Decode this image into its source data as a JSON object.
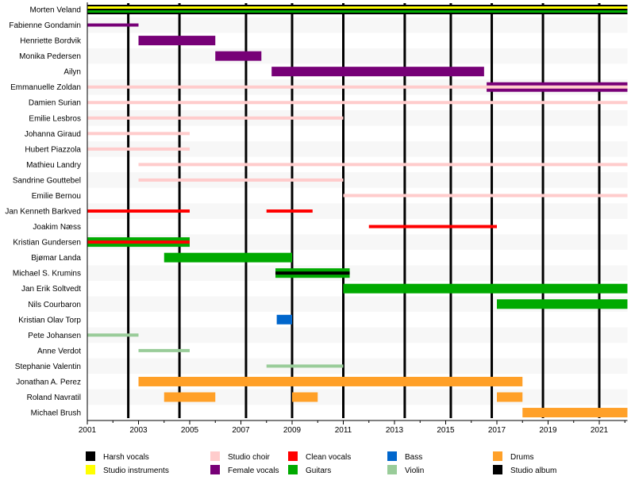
{
  "chart_data": {
    "type": "timeline",
    "xlim": [
      2001,
      2022.1
    ],
    "x_ticks": [
      "2001",
      "2003",
      "2005",
      "2007",
      "2009",
      "2011",
      "2013",
      "2015",
      "2017",
      "2019",
      "2021"
    ],
    "roles": {
      "harsh": {
        "label": "Harsh vocals",
        "color": "#000000"
      },
      "studio": {
        "label": "Studio instruments",
        "color": "#ffff00"
      },
      "choir": {
        "label": "Studio choir",
        "color": "#ffcccc"
      },
      "female": {
        "label": "Female vocals",
        "color": "#770077"
      },
      "clean": {
        "label": "Clean vocals",
        "color": "#ff0000"
      },
      "guitars": {
        "label": "Guitars",
        "color": "#00aa00"
      },
      "bass": {
        "label": "Bass",
        "color": "#0066cc"
      },
      "violin": {
        "label": "Violin",
        "color": "#99cc99"
      },
      "drums": {
        "label": "Drums",
        "color": "#ffa028"
      },
      "album": {
        "label": "Studio album",
        "color": "#000000"
      }
    },
    "legend_order": [
      "harsh",
      "studio",
      "choir",
      "female",
      "clean",
      "guitars",
      "bass",
      "violin",
      "drums",
      "album"
    ],
    "legend_placement": "bottom",
    "albums": [
      2002.6,
      2004.6,
      2007.2,
      2009.0,
      2011.0,
      2013.4,
      2015.2,
      2016.8,
      2018.8,
      2021.0
    ],
    "members": [
      {
        "name": "Morten Veland",
        "bars": [
          {
            "role": "harsh",
            "from": 2001,
            "to": 2022.1,
            "main": true
          },
          {
            "role": "studio",
            "from": 2001,
            "to": 2022.1,
            "stripe": "upper"
          },
          {
            "role": "guitars",
            "from": 2001,
            "to": 2022.1,
            "stripe": "lower"
          }
        ]
      },
      {
        "name": "Fabienne Gondamin",
        "bars": [
          {
            "role": "female",
            "from": 2001,
            "to": 2003,
            "thin": true
          }
        ]
      },
      {
        "name": "Henriette Bordvik",
        "bars": [
          {
            "role": "female",
            "from": 2003,
            "to": 2006,
            "main": true
          }
        ]
      },
      {
        "name": "Monika Pedersen",
        "bars": [
          {
            "role": "female",
            "from": 2006,
            "to": 2007.8,
            "main": true
          }
        ]
      },
      {
        "name": "Ailyn",
        "bars": [
          {
            "role": "female",
            "from": 2008.2,
            "to": 2016.5,
            "main": true
          }
        ]
      },
      {
        "name": "Emmanuelle Zoldan",
        "bars": [
          {
            "role": "female",
            "from": 2016.6,
            "to": 2022.1,
            "main": true
          },
          {
            "role": "choir",
            "from": 2001,
            "to": 2022.1,
            "thin": true
          }
        ]
      },
      {
        "name": "Damien Surian",
        "bars": [
          {
            "role": "choir",
            "from": 2001,
            "to": 2022.1,
            "thin": true
          }
        ]
      },
      {
        "name": "Emilie Lesbros",
        "bars": [
          {
            "role": "choir",
            "from": 2001,
            "to": 2011,
            "thin": true
          }
        ]
      },
      {
        "name": "Johanna Giraud",
        "bars": [
          {
            "role": "choir",
            "from": 2001,
            "to": 2005,
            "thin": true
          }
        ]
      },
      {
        "name": "Hubert Piazzola",
        "bars": [
          {
            "role": "choir",
            "from": 2001,
            "to": 2005,
            "thin": true
          }
        ]
      },
      {
        "name": "Mathieu Landry",
        "bars": [
          {
            "role": "choir",
            "from": 2003,
            "to": 2022.1,
            "thin": true
          }
        ]
      },
      {
        "name": "Sandrine Gouttebel",
        "bars": [
          {
            "role": "choir",
            "from": 2003,
            "to": 2011,
            "thin": true
          }
        ]
      },
      {
        "name": "Emilie Bernou",
        "bars": [
          {
            "role": "choir",
            "from": 2011,
            "to": 2022.1,
            "thin": true
          }
        ]
      },
      {
        "name": "Jan Kenneth Barkved",
        "bars": [
          {
            "role": "clean",
            "from": 2001,
            "to": 2005,
            "thin": true
          },
          {
            "role": "clean",
            "from": 2008,
            "to": 2009.8,
            "thin": true
          }
        ]
      },
      {
        "name": "Joakim Næss",
        "bars": [
          {
            "role": "clean",
            "from": 2012,
            "to": 2017,
            "thin": true
          }
        ]
      },
      {
        "name": "Kristian Gundersen",
        "bars": [
          {
            "role": "guitars",
            "from": 2001,
            "to": 2005,
            "main": true
          },
          {
            "role": "clean",
            "from": 2001,
            "to": 2005,
            "thin": true
          }
        ]
      },
      {
        "name": "Bjømar Landa",
        "bars": [
          {
            "role": "guitars",
            "from": 2004,
            "to": 2009,
            "main": true
          }
        ]
      },
      {
        "name": "Michael S. Krumins",
        "bars": [
          {
            "role": "guitars",
            "from": 2008.35,
            "to": 2011.25,
            "main": true
          },
          {
            "role": "harsh",
            "from": 2008.35,
            "to": 2011.25,
            "thin": true
          }
        ]
      },
      {
        "name": "Jan Erik Soltvedt",
        "bars": [
          {
            "role": "guitars",
            "from": 2011,
            "to": 2022.1,
            "main": true
          }
        ]
      },
      {
        "name": "Nils Courbaron",
        "bars": [
          {
            "role": "guitars",
            "from": 2017,
            "to": 2022.1,
            "main": true
          }
        ]
      },
      {
        "name": "Kristian Olav Torp",
        "bars": [
          {
            "role": "bass",
            "from": 2008.4,
            "to": 2009,
            "main": true
          }
        ]
      },
      {
        "name": "Pete Johansen",
        "bars": [
          {
            "role": "violin",
            "from": 2001,
            "to": 2003,
            "thin": true
          }
        ]
      },
      {
        "name": "Anne Verdot",
        "bars": [
          {
            "role": "violin",
            "from": 2003,
            "to": 2005,
            "thin": true
          }
        ]
      },
      {
        "name": "Stephanie Valentin",
        "bars": [
          {
            "role": "violin",
            "from": 2008,
            "to": 2011,
            "thin": true
          }
        ]
      },
      {
        "name": "Jonathan A. Perez",
        "bars": [
          {
            "role": "drums",
            "from": 2003,
            "to": 2018,
            "main": true
          }
        ]
      },
      {
        "name": "Roland Navratil",
        "bars": [
          {
            "role": "drums",
            "from": 2004,
            "to": 2006,
            "main": true
          },
          {
            "role": "drums",
            "from": 2009,
            "to": 2010,
            "main": true
          },
          {
            "role": "drums",
            "from": 2017,
            "to": 2018,
            "main": true
          }
        ]
      },
      {
        "name": "Michael Brush",
        "bars": [
          {
            "role": "drums",
            "from": 2018,
            "to": 2022.1,
            "main": true
          }
        ]
      }
    ]
  }
}
